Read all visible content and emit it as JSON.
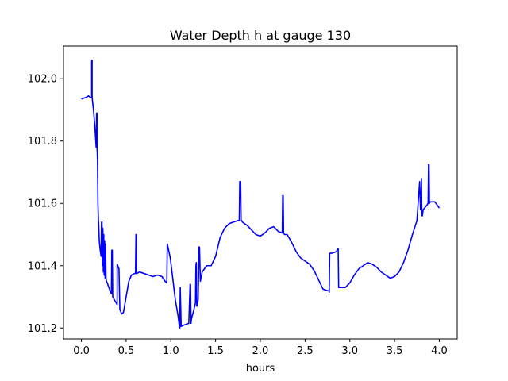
{
  "chart_data": {
    "type": "line",
    "title": "Water Depth h at gauge 130",
    "xlabel": "hours",
    "ylabel": "",
    "xlim": [
      -0.2,
      4.2
    ],
    "ylim": [
      101.165,
      102.105
    ],
    "grid": false,
    "xticks": [
      {
        "value": 0.0,
        "label": "0.0"
      },
      {
        "value": 0.5,
        "label": "0.5"
      },
      {
        "value": 1.0,
        "label": "1.0"
      },
      {
        "value": 1.5,
        "label": "1.5"
      },
      {
        "value": 2.0,
        "label": "2.0"
      },
      {
        "value": 2.5,
        "label": "2.5"
      },
      {
        "value": 3.0,
        "label": "3.0"
      },
      {
        "value": 3.5,
        "label": "3.5"
      },
      {
        "value": 4.0,
        "label": "4.0"
      }
    ],
    "yticks": [
      {
        "value": 101.2,
        "label": "101.2"
      },
      {
        "value": 101.4,
        "label": "101.4"
      },
      {
        "value": 101.6,
        "label": "101.6"
      },
      {
        "value": 101.8,
        "label": "101.8"
      },
      {
        "value": 102.0,
        "label": "102.0"
      }
    ],
    "series": [
      {
        "color": "#0000ff",
        "x": [
          0.0,
          0.05,
          0.08,
          0.1,
          0.115,
          0.115,
          0.12,
          0.12,
          0.135,
          0.15,
          0.165,
          0.17,
          0.175,
          0.175,
          0.18,
          0.185,
          0.19,
          0.195,
          0.2,
          0.21,
          0.22,
          0.225,
          0.23,
          0.235,
          0.24,
          0.245,
          0.25,
          0.255,
          0.26,
          0.265,
          0.27,
          0.275,
          0.28,
          0.29,
          0.3,
          0.32,
          0.335,
          0.34,
          0.345,
          0.35,
          0.38,
          0.4,
          0.4,
          0.42,
          0.43,
          0.45,
          0.47,
          0.5,
          0.53,
          0.56,
          0.595,
          0.605,
          0.61,
          0.615,
          0.615,
          0.62,
          0.65,
          0.7,
          0.75,
          0.8,
          0.85,
          0.9,
          0.935,
          0.955,
          0.96,
          0.975,
          0.99,
          1.0,
          1.05,
          1.08,
          1.095,
          1.1,
          1.105,
          1.115,
          1.15,
          1.2,
          1.215,
          1.22,
          1.225,
          1.23,
          1.25,
          1.275,
          1.28,
          1.285,
          1.29,
          1.305,
          1.315,
          1.32,
          1.33,
          1.35,
          1.4,
          1.45,
          1.5,
          1.55,
          1.6,
          1.65,
          1.7,
          1.75,
          1.765,
          1.77,
          1.78,
          1.785,
          1.79,
          1.8,
          1.85,
          1.9,
          1.95,
          2.0,
          2.05,
          2.1,
          2.15,
          2.2,
          2.245,
          2.25,
          2.255,
          2.26,
          2.27,
          2.3,
          2.35,
          2.4,
          2.45,
          2.5,
          2.55,
          2.6,
          2.65,
          2.7,
          2.75,
          2.765,
          2.77,
          2.775,
          2.8,
          2.85,
          2.865,
          2.87,
          2.875,
          2.9,
          2.95,
          3.0,
          3.05,
          3.1,
          3.15,
          3.2,
          3.25,
          3.3,
          3.35,
          3.4,
          3.45,
          3.5,
          3.55,
          3.6,
          3.65,
          3.7,
          3.75,
          3.78,
          3.79,
          3.795,
          3.8,
          3.805,
          3.81,
          3.82,
          3.85,
          3.875,
          3.88,
          3.885,
          3.89,
          3.9,
          3.95,
          3.975,
          4.0
        ],
        "y": [
          101.935,
          101.94,
          101.945,
          101.94,
          101.94,
          102.06,
          102.06,
          101.94,
          101.9,
          101.85,
          101.78,
          101.89,
          101.89,
          101.78,
          101.74,
          101.6,
          101.55,
          101.52,
          101.48,
          101.45,
          101.43,
          101.54,
          101.54,
          101.4,
          101.52,
          101.38,
          101.5,
          101.37,
          101.48,
          101.36,
          101.47,
          101.36,
          101.35,
          101.345,
          101.335,
          101.32,
          101.31,
          101.45,
          101.45,
          101.3,
          101.285,
          101.275,
          101.405,
          101.39,
          101.26,
          101.245,
          101.25,
          101.3,
          101.35,
          101.37,
          101.375,
          101.375,
          101.5,
          101.5,
          101.375,
          101.375,
          101.38,
          101.375,
          101.37,
          101.365,
          101.37,
          101.365,
          101.35,
          101.345,
          101.47,
          101.45,
          101.43,
          101.41,
          101.29,
          101.24,
          101.205,
          101.2,
          101.33,
          101.205,
          101.21,
          101.215,
          101.34,
          101.34,
          101.215,
          101.23,
          101.25,
          101.28,
          101.4,
          101.41,
          101.27,
          101.29,
          101.46,
          101.46,
          101.35,
          101.38,
          101.4,
          101.4,
          101.43,
          101.49,
          101.52,
          101.535,
          101.54,
          101.545,
          101.545,
          101.67,
          101.67,
          101.545,
          101.545,
          101.54,
          101.53,
          101.515,
          101.5,
          101.495,
          101.505,
          101.52,
          101.525,
          101.51,
          101.505,
          101.625,
          101.625,
          101.505,
          101.5,
          101.5,
          101.475,
          101.445,
          101.425,
          101.415,
          101.405,
          101.385,
          101.355,
          101.325,
          101.32,
          101.32,
          101.315,
          101.44,
          101.44,
          101.445,
          101.455,
          101.455,
          101.33,
          101.33,
          101.33,
          101.345,
          101.37,
          101.39,
          101.4,
          101.41,
          101.405,
          101.395,
          101.38,
          101.37,
          101.36,
          101.365,
          101.38,
          101.41,
          101.45,
          101.5,
          101.545,
          101.67,
          101.58,
          101.58,
          101.68,
          101.56,
          101.56,
          101.58,
          101.59,
          101.6,
          101.725,
          101.725,
          101.6,
          101.605,
          101.605,
          101.595,
          101.585
        ]
      }
    ]
  }
}
